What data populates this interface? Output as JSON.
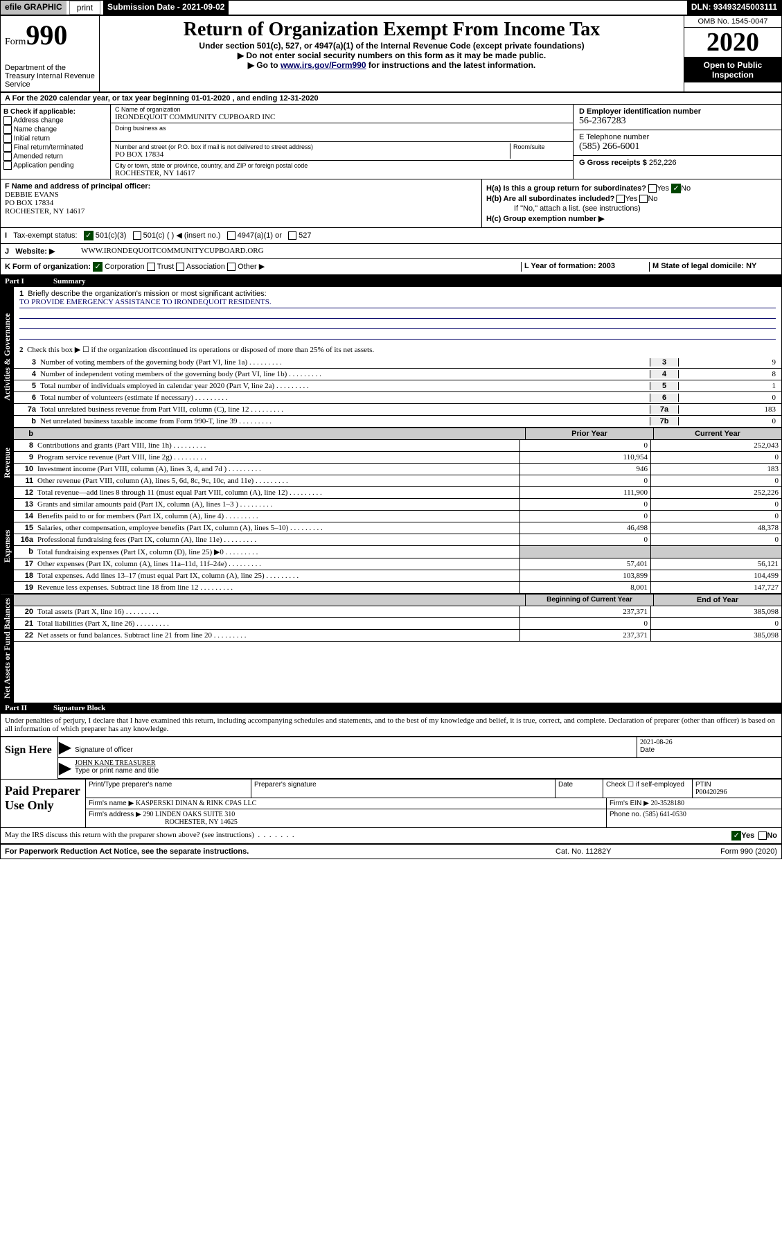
{
  "topbar": {
    "efile": "efile GRAPHIC",
    "print": "print",
    "subdate_label": "Submission Date - 2021-09-02",
    "dln": "DLN: 93493245003111"
  },
  "header": {
    "form": "Form",
    "num": "990",
    "dept": "Department of the Treasury Internal Revenue Service",
    "title": "Return of Organization Exempt From Income Tax",
    "subtitle": "Under section 501(c), 527, or 4947(a)(1) of the Internal Revenue Code (except private foundations)",
    "instr1": "▶ Do not enter social security numbers on this form as it may be made public.",
    "instr2_pre": "▶ Go to ",
    "instr2_link": "www.irs.gov/Form990",
    "instr2_post": " for instructions and the latest information.",
    "omb": "OMB No. 1545-0047",
    "year": "2020",
    "open": "Open to Public Inspection"
  },
  "period": "For the 2020 calendar year, or tax year beginning 01-01-2020   , and ending 12-31-2020",
  "blockB": {
    "label": "B Check if applicable:",
    "items": [
      "Address change",
      "Name change",
      "Initial return",
      "Final return/terminated",
      "Amended return",
      "Application pending"
    ]
  },
  "blockC": {
    "name_label": "C Name of organization",
    "name": "IRONDEQUOIT COMMUNITY CUPBOARD INC",
    "dba_label": "Doing business as",
    "addr_label": "Number and street (or P.O. box if mail is not delivered to street address)",
    "room_label": "Room/suite",
    "addr": "PO BOX 17834",
    "city_label": "City or town, state or province, country, and ZIP or foreign postal code",
    "city": "ROCHESTER, NY  14617"
  },
  "blockD": {
    "label": "D Employer identification number",
    "ein": "56-2367283"
  },
  "blockE": {
    "label": "E Telephone number",
    "phone": "(585) 266-6001"
  },
  "blockG": {
    "label": "G Gross receipts $",
    "val": "252,226"
  },
  "blockF": {
    "label": "F  Name and address of principal officer:",
    "name": "DEBBIE EVANS",
    "addr1": "PO BOX 17834",
    "addr2": "ROCHESTER, NY  14617"
  },
  "blockH": {
    "ha": "H(a)  Is this a group return for subordinates?",
    "hb": "H(b)  Are all subordinates included?",
    "hb2": "If \"No,\" attach a list. (see instructions)",
    "hc": "H(c)  Group exemption number ▶",
    "yes": "Yes",
    "no": "No"
  },
  "rowI": {
    "label": "Tax-exempt status:",
    "opts": [
      "501(c)(3)",
      "501(c) (  ) ◀ (insert no.)",
      "4947(a)(1) or",
      "527"
    ]
  },
  "rowJ": {
    "label": "Website: ▶",
    "val": "WWW.IRONDEQUOITCOMMUNITYCUPBOARD.ORG"
  },
  "rowK": {
    "label": "K Form of organization:",
    "opts": [
      "Corporation",
      "Trust",
      "Association",
      "Other ▶"
    ],
    "L": "L Year of formation: 2003",
    "M": "M State of legal domicile: NY"
  },
  "partI": {
    "header": "Part I",
    "title": "Summary",
    "line1": "Briefly describe the organization's mission or most significant activities:",
    "mission": "TO PROVIDE EMERGENCY ASSISTANCE TO IRONDEQUOIT RESIDENTS.",
    "line2": "Check this box ▶ ☐  if the organization discontinued its operations or disposed of more than 25% of its net assets.",
    "rows": [
      {
        "n": "3",
        "d": "Number of voting members of the governing body (Part VI, line 1a)",
        "box": "3",
        "v": "9"
      },
      {
        "n": "4",
        "d": "Number of independent voting members of the governing body (Part VI, line 1b)",
        "box": "4",
        "v": "8"
      },
      {
        "n": "5",
        "d": "Total number of individuals employed in calendar year 2020 (Part V, line 2a)",
        "box": "5",
        "v": "1"
      },
      {
        "n": "6",
        "d": "Total number of volunteers (estimate if necessary)",
        "box": "6",
        "v": "0"
      },
      {
        "n": "7a",
        "d": "Total unrelated business revenue from Part VIII, column (C), line 12",
        "box": "7a",
        "v": "183"
      },
      {
        "n": "b",
        "d": "Net unrelated business taxable income from Form 990-T, line 39",
        "box": "7b",
        "v": "0"
      }
    ],
    "col_headers": {
      "prior": "Prior Year",
      "curr": "Current Year",
      "beg": "Beginning of Current Year",
      "end": "End of Year"
    },
    "revenue": [
      {
        "n": "8",
        "d": "Contributions and grants (Part VIII, line 1h)",
        "p": "0",
        "c": "252,043"
      },
      {
        "n": "9",
        "d": "Program service revenue (Part VIII, line 2g)",
        "p": "110,954",
        "c": "0"
      },
      {
        "n": "10",
        "d": "Investment income (Part VIII, column (A), lines 3, 4, and 7d )",
        "p": "946",
        "c": "183"
      },
      {
        "n": "11",
        "d": "Other revenue (Part VIII, column (A), lines 5, 6d, 8c, 9c, 10c, and 11e)",
        "p": "0",
        "c": "0"
      },
      {
        "n": "12",
        "d": "Total revenue—add lines 8 through 11 (must equal Part VIII, column (A), line 12)",
        "p": "111,900",
        "c": "252,226"
      }
    ],
    "expenses": [
      {
        "n": "13",
        "d": "Grants and similar amounts paid (Part IX, column (A), lines 1–3 )",
        "p": "0",
        "c": "0"
      },
      {
        "n": "14",
        "d": "Benefits paid to or for members (Part IX, column (A), line 4)",
        "p": "0",
        "c": "0"
      },
      {
        "n": "15",
        "d": "Salaries, other compensation, employee benefits (Part IX, column (A), lines 5–10)",
        "p": "46,498",
        "c": "48,378"
      },
      {
        "n": "16a",
        "d": "Professional fundraising fees (Part IX, column (A), line 11e)",
        "p": "0",
        "c": "0"
      },
      {
        "n": "b",
        "d": "Total fundraising expenses (Part IX, column (D), line 25) ▶0",
        "p": "",
        "c": "",
        "shade": true
      },
      {
        "n": "17",
        "d": "Other expenses (Part IX, column (A), lines 11a–11d, 11f–24e)",
        "p": "57,401",
        "c": "56,121"
      },
      {
        "n": "18",
        "d": "Total expenses. Add lines 13–17 (must equal Part IX, column (A), line 25)",
        "p": "103,899",
        "c": "104,499"
      },
      {
        "n": "19",
        "d": "Revenue less expenses. Subtract line 18 from line 12",
        "p": "8,001",
        "c": "147,727"
      }
    ],
    "netassets": [
      {
        "n": "20",
        "d": "Total assets (Part X, line 16)",
        "p": "237,371",
        "c": "385,098"
      },
      {
        "n": "21",
        "d": "Total liabilities (Part X, line 26)",
        "p": "0",
        "c": "0"
      },
      {
        "n": "22",
        "d": "Net assets or fund balances. Subtract line 21 from line 20",
        "p": "237,371",
        "c": "385,098"
      }
    ],
    "tabs": {
      "gov": "Activities & Governance",
      "rev": "Revenue",
      "exp": "Expenses",
      "net": "Net Assets or Fund Balances"
    }
  },
  "partII": {
    "header": "Part II",
    "title": "Signature Block",
    "perjury": "Under penalties of perjury, I declare that I have examined this return, including accompanying schedules and statements, and to the best of my knowledge and belief, it is true, correct, and complete. Declaration of preparer (other than officer) is based on all information of which preparer has any knowledge.",
    "sign_here": "Sign Here",
    "sig_label": "Signature of officer",
    "date_label": "Date",
    "date": "2021-08-26",
    "name": "JOHN KANE  TREASURER",
    "name_label": "Type or print name and title",
    "paid": "Paid Preparer Use Only",
    "prep_headers": [
      "Print/Type preparer's name",
      "Preparer's signature",
      "Date"
    ],
    "check_self": "Check ☐ if self-employed",
    "ptin_label": "PTIN",
    "ptin": "P00420296",
    "firm_name_label": "Firm's name    ▶",
    "firm_name": "KASPERSKI DINAN & RINK CPAS LLC",
    "firm_ein_label": "Firm's EIN ▶",
    "firm_ein": "20-3528180",
    "firm_addr_label": "Firm's address ▶",
    "firm_addr": "290 LINDEN OAKS SUITE 310",
    "firm_city": "ROCHESTER, NY  14625",
    "phone_label": "Phone no.",
    "phone": "(585) 641-0530"
  },
  "footer": {
    "discuss": "May the IRS discuss this return with the preparer shown above? (see instructions)",
    "pra": "For Paperwork Reduction Act Notice, see the separate instructions.",
    "cat": "Cat. No. 11282Y",
    "form": "Form 990 (2020)",
    "yes": "Yes",
    "no": "No"
  }
}
